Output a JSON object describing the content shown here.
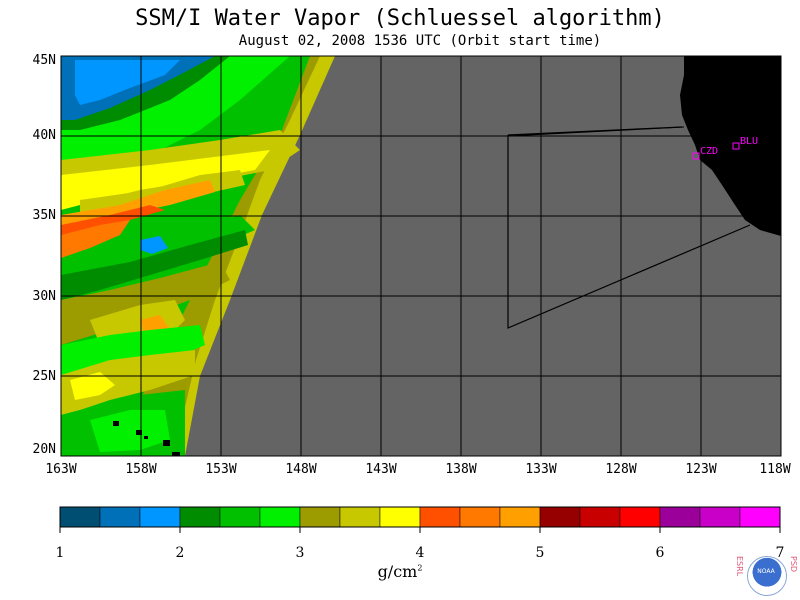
{
  "title": "SSM/I Water Vapor (Schluessel algorithm)",
  "subtitle": "August 02, 2008  1536 UTC  (Orbit start time)",
  "lat_labels": [
    "45N",
    "40N",
    "35N",
    "30N",
    "25N",
    "20N"
  ],
  "lon_labels": [
    "163W",
    "158W",
    "153W",
    "148W",
    "143W",
    "138W",
    "133W",
    "128W",
    "123W",
    "118W"
  ],
  "map_extent": {
    "lon_min": -163,
    "lon_max": -118,
    "lat_min": 20,
    "lat_max": 45
  },
  "stations": [
    "CZD",
    "BLU"
  ],
  "colorbar": {
    "ticks": [
      "1",
      "2",
      "3",
      "4",
      "5",
      "6",
      "7"
    ],
    "units_base": "g/cm",
    "units_exp": "2",
    "colors": [
      "#004f72",
      "#0070b8",
      "#0096ff",
      "#008c00",
      "#00c000",
      "#00f000",
      "#9c9c00",
      "#c8c800",
      "#ffff00",
      "#ff5000",
      "#ff7800",
      "#ffa000",
      "#960000",
      "#c80000",
      "#ff0000",
      "#9b009b",
      "#c800c8",
      "#ff00ff"
    ]
  },
  "colors": {
    "no_data": "#646464",
    "land": "#000000",
    "station": "#ff00ff"
  },
  "logo": {
    "left": "ESRL",
    "right": "PSD",
    "center": "NOAA"
  }
}
